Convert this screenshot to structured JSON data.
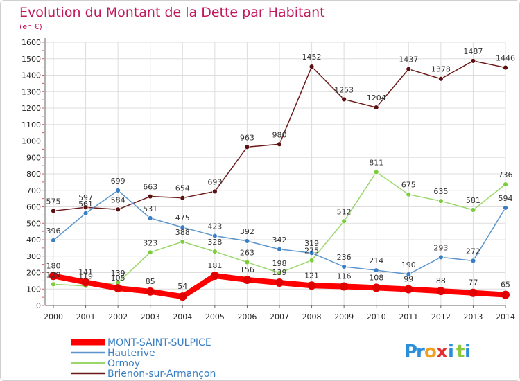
{
  "chart_data": {
    "type": "line",
    "title": "Evolution du Montant de la Dette par Habitant",
    "subtitle": "(en €)",
    "xlabel": "",
    "ylabel": "",
    "ylim": [
      0,
      1600
    ],
    "yticks": [
      0,
      100,
      200,
      300,
      400,
      500,
      600,
      700,
      800,
      900,
      1000,
      1100,
      1200,
      1300,
      1400,
      1500,
      1600
    ],
    "grid": true,
    "legend": "bottom-left",
    "x": [
      "2000",
      "2001",
      "2002",
      "2003",
      "2004",
      "2005",
      "2006",
      "2007",
      "2008",
      "2009",
      "2010",
      "2011",
      "2012",
      "2013",
      "2014"
    ],
    "series": [
      {
        "name": "Brienon-sur-Armançon",
        "color": "#6b1a1a",
        "marker": "#5a1010",
        "values": [
          575,
          597,
          584,
          663,
          654,
          693,
          963,
          980,
          1452,
          1253,
          1204,
          1437,
          1378,
          1487,
          1446
        ]
      },
      {
        "name": "Ormoy",
        "color": "#9ad66a",
        "marker": "#7ccc3c",
        "values": [
          129,
          119,
          139,
          323,
          388,
          328,
          263,
          198,
          275,
          512,
          811,
          675,
          635,
          581,
          736
        ]
      },
      {
        "name": "Hauterive",
        "color": "#5b95cc",
        "marker": "#3a7fc4",
        "values": [
          396,
          561,
          699,
          531,
          475,
          423,
          392,
          342,
          319,
          236,
          214,
          190,
          293,
          272,
          594
        ]
      },
      {
        "name": "MONT-SAINT-SULPICE",
        "color": "#ff0000",
        "marker": "#e00000",
        "values": [
          180,
          141,
          105,
          85,
          54,
          181,
          156,
          139,
          121,
          116,
          108,
          99,
          88,
          77,
          65
        ]
      }
    ]
  },
  "legend": {
    "items": [
      {
        "label": "MONT-SAINT-SULPICE",
        "color": "#ff0000",
        "text_color": "#3a7fc4"
      },
      {
        "label": "Hauterive",
        "color": "#5b95cc",
        "text_color": "#3a7fc4"
      },
      {
        "label": "Ormoy",
        "color": "#9ad66a",
        "text_color": "#3a7fc4"
      },
      {
        "label": "Brienon-sur-Armançon",
        "color": "#6b1a1a",
        "text_color": "#3a7fc4"
      }
    ]
  },
  "logo": {
    "letters": [
      {
        "ch": "P",
        "color": "#2a8fd8"
      },
      {
        "ch": "r",
        "color": "#2a8fd8"
      },
      {
        "ch": "o",
        "color": "#f0a020"
      },
      {
        "ch": "x",
        "color": "#e03030"
      },
      {
        "ch": "i",
        "color": "#2a8fd8"
      },
      {
        "ch": "t",
        "color": "#8cc83c"
      },
      {
        "ch": "i",
        "color": "#2a8fd8"
      }
    ]
  }
}
